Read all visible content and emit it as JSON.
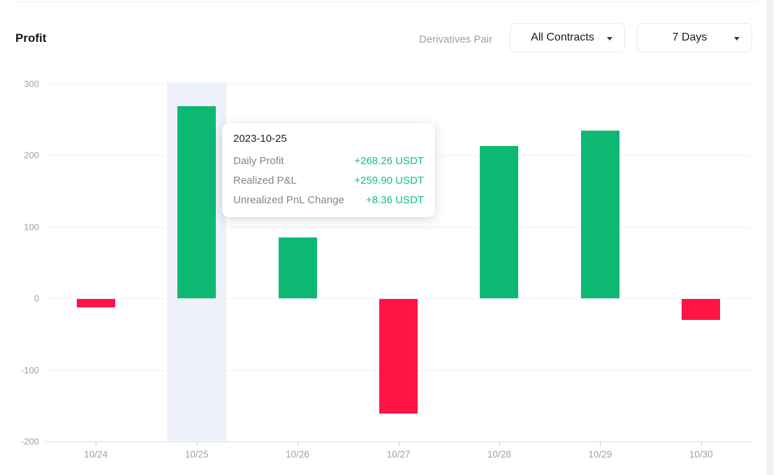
{
  "header": {
    "title": "Profit",
    "filter_label": "Derivatives Pair",
    "contracts_dropdown_value": "All Contracts",
    "period_dropdown_value": "7 Days"
  },
  "chart_data": {
    "type": "bar",
    "title": "Profit",
    "categories": [
      "10/24",
      "10/25",
      "10/26",
      "10/27",
      "10/28",
      "10/29",
      "10/30"
    ],
    "values": [
      -12,
      268.26,
      85,
      -160,
      213,
      234,
      -29
    ],
    "y_ticks": [
      300,
      200,
      100,
      0,
      -100,
      -200
    ],
    "ylim": [
      -200,
      302
    ],
    "xlabel": "",
    "ylabel": "",
    "grid": true,
    "legend": "none",
    "highlighted_category": "10/25",
    "colors": {
      "positive": "#0db872",
      "negative": "#ff1446",
      "highlight_band": "#eef1f9",
      "gridline": "#edf0f5",
      "axis_line": "#dde1e8",
      "axis_label": "#9aa2b1"
    }
  },
  "tooltip": {
    "date": "2023-10-25",
    "rows": [
      {
        "label": "Daily Profit",
        "value": "+268.26 USDT"
      },
      {
        "label": "Realized P&L",
        "value": "+259.90 USDT"
      },
      {
        "label": "Unrealized PnL Change",
        "value": "+8.36 USDT"
      }
    ],
    "value_color": "#0fc27b"
  }
}
